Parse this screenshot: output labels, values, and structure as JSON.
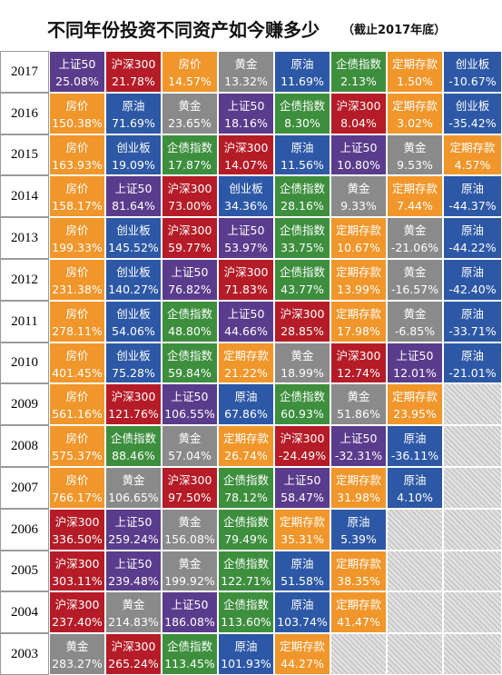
{
  "title": "不同年份投资不同资产如今赚多少",
  "subtitle": "（截止2017年底）",
  "colors": {
    "上证50": "#5a3c8c",
    "沪深300": "#b51c27",
    "房价": "#f0962a",
    "黄金": "#8a8a8a",
    "原油": "#2d58a6",
    "企债指数": "#3d8f3e",
    "定期存款": "#f0962a",
    "创业板": "#2d58a6"
  },
  "chart_data": {
    "type": "table",
    "years": [
      "2017",
      "2016",
      "2015",
      "2014",
      "2013",
      "2012",
      "2011",
      "2010",
      "2009",
      "2008",
      "2007",
      "2006",
      "2005",
      "2004",
      "2003"
    ],
    "rows": [
      {
        "year": "2017",
        "cells": [
          {
            "asset": "上证50",
            "value": "25.08%"
          },
          {
            "asset": "沪深300",
            "value": "21.78%"
          },
          {
            "asset": "房价",
            "value": "14.57%"
          },
          {
            "asset": "黄金",
            "value": "13.32%"
          },
          {
            "asset": "原油",
            "value": "11.69%"
          },
          {
            "asset": "企债指数",
            "value": "2.13%"
          },
          {
            "asset": "定期存款",
            "value": "1.50%"
          },
          {
            "asset": "创业板",
            "value": "-10.67%"
          }
        ]
      },
      {
        "year": "2016",
        "cells": [
          {
            "asset": "房价",
            "value": "150.38%"
          },
          {
            "asset": "原油",
            "value": "71.69%"
          },
          {
            "asset": "黄金",
            "value": "23.65%"
          },
          {
            "asset": "上证50",
            "value": "18.16%"
          },
          {
            "asset": "企债指数",
            "value": "8.30%"
          },
          {
            "asset": "沪深300",
            "value": "8.04%"
          },
          {
            "asset": "定期存款",
            "value": "3.02%"
          },
          {
            "asset": "创业板",
            "value": "-35.42%"
          }
        ]
      },
      {
        "year": "2015",
        "cells": [
          {
            "asset": "房价",
            "value": "163.93%"
          },
          {
            "asset": "创业板",
            "value": "19.09%"
          },
          {
            "asset": "企债指数",
            "value": "17.87%"
          },
          {
            "asset": "沪深300",
            "value": "14.07%"
          },
          {
            "asset": "原油",
            "value": "11.56%"
          },
          {
            "asset": "上证50",
            "value": "10.80%"
          },
          {
            "asset": "黄金",
            "value": "9.53%"
          },
          {
            "asset": "定期存款",
            "value": "4.57%"
          }
        ]
      },
      {
        "year": "2014",
        "cells": [
          {
            "asset": "房价",
            "value": "158.17%"
          },
          {
            "asset": "上证50",
            "value": "81.64%"
          },
          {
            "asset": "沪深300",
            "value": "73.00%"
          },
          {
            "asset": "创业板",
            "value": "34.36%"
          },
          {
            "asset": "企债指数",
            "value": "28.16%"
          },
          {
            "asset": "黄金",
            "value": "9.33%"
          },
          {
            "asset": "定期存款",
            "value": "7.44%"
          },
          {
            "asset": "原油",
            "value": "-44.37%"
          }
        ]
      },
      {
        "year": "2013",
        "cells": [
          {
            "asset": "房价",
            "value": "199.33%"
          },
          {
            "asset": "创业板",
            "value": "145.52%"
          },
          {
            "asset": "沪深300",
            "value": "59.77%"
          },
          {
            "asset": "上证50",
            "value": "53.97%"
          },
          {
            "asset": "企债指数",
            "value": "33.75%"
          },
          {
            "asset": "定期存款",
            "value": "10.67%"
          },
          {
            "asset": "黄金",
            "value": "-21.06%"
          },
          {
            "asset": "原油",
            "value": "-44.22%"
          }
        ]
      },
      {
        "year": "2012",
        "cells": [
          {
            "asset": "房价",
            "value": "231.38%"
          },
          {
            "asset": "创业板",
            "value": "140.27%"
          },
          {
            "asset": "上证50",
            "value": "76.82%"
          },
          {
            "asset": "沪深300",
            "value": "71.83%"
          },
          {
            "asset": "企债指数",
            "value": "43.77%"
          },
          {
            "asset": "定期存款",
            "value": "13.99%"
          },
          {
            "asset": "黄金",
            "value": "-16.57%"
          },
          {
            "asset": "原油",
            "value": "-42.40%"
          }
        ]
      },
      {
        "year": "2011",
        "cells": [
          {
            "asset": "房价",
            "value": "278.11%"
          },
          {
            "asset": "创业板",
            "value": "54.06%"
          },
          {
            "asset": "企债指数",
            "value": "48.80%"
          },
          {
            "asset": "上证50",
            "value": "44.66%"
          },
          {
            "asset": "沪深300",
            "value": "28.85%"
          },
          {
            "asset": "定期存款",
            "value": "17.98%"
          },
          {
            "asset": "黄金",
            "value": "-6.85%"
          },
          {
            "asset": "原油",
            "value": "-33.71%"
          }
        ]
      },
      {
        "year": "2010",
        "cells": [
          {
            "asset": "房价",
            "value": "401.45%"
          },
          {
            "asset": "创业板",
            "value": "75.28%"
          },
          {
            "asset": "企债指数",
            "value": "59.84%"
          },
          {
            "asset": "定期存款",
            "value": "21.22%"
          },
          {
            "asset": "黄金",
            "value": "18.99%"
          },
          {
            "asset": "沪深300",
            "value": "12.74%"
          },
          {
            "asset": "上证50",
            "value": "12.01%"
          },
          {
            "asset": "原油",
            "value": "-21.01%"
          }
        ]
      },
      {
        "year": "2009",
        "cells": [
          {
            "asset": "房价",
            "value": "561.16%"
          },
          {
            "asset": "沪深300",
            "value": "121.76%"
          },
          {
            "asset": "上证50",
            "value": "106.55%"
          },
          {
            "asset": "原油",
            "value": "67.86%"
          },
          {
            "asset": "企债指数",
            "value": "60.93%"
          },
          {
            "asset": "黄金",
            "value": "51.86%"
          },
          {
            "asset": "定期存款",
            "value": "23.95%"
          }
        ]
      },
      {
        "year": "2008",
        "cells": [
          {
            "asset": "房价",
            "value": "575.37%"
          },
          {
            "asset": "企债指数",
            "value": "88.46%"
          },
          {
            "asset": "黄金",
            "value": "57.04%"
          },
          {
            "asset": "定期存款",
            "value": "26.74%"
          },
          {
            "asset": "沪深300",
            "value": "-24.49%"
          },
          {
            "asset": "上证50",
            "value": "-32.31%"
          },
          {
            "asset": "原油",
            "value": "-36.11%"
          }
        ]
      },
      {
        "year": "2007",
        "cells": [
          {
            "asset": "房价",
            "value": "766.17%"
          },
          {
            "asset": "黄金",
            "value": "106.65%"
          },
          {
            "asset": "沪深300",
            "value": "97.50%"
          },
          {
            "asset": "企债指数",
            "value": "78.12%"
          },
          {
            "asset": "上证50",
            "value": "58.47%"
          },
          {
            "asset": "定期存款",
            "value": "31.98%"
          },
          {
            "asset": "原油",
            "value": "4.10%"
          }
        ]
      },
      {
        "year": "2006",
        "cells": [
          {
            "asset": "沪深300",
            "value": "336.50%"
          },
          {
            "asset": "上证50",
            "value": "259.24%"
          },
          {
            "asset": "黄金",
            "value": "156.08%"
          },
          {
            "asset": "企债指数",
            "value": "79.49%"
          },
          {
            "asset": "定期存款",
            "value": "35.31%"
          },
          {
            "asset": "原油",
            "value": "5.39%"
          }
        ]
      },
      {
        "year": "2005",
        "cells": [
          {
            "asset": "沪深300",
            "value": "303.11%"
          },
          {
            "asset": "上证50",
            "value": "239.48%"
          },
          {
            "asset": "黄金",
            "value": "199.92%"
          },
          {
            "asset": "企债指数",
            "value": "122.71%"
          },
          {
            "asset": "原油",
            "value": "51.58%"
          },
          {
            "asset": "定期存款",
            "value": "38.35%"
          }
        ]
      },
      {
        "year": "2004",
        "cells": [
          {
            "asset": "沪深300",
            "value": "237.40%"
          },
          {
            "asset": "黄金",
            "value": "214.83%"
          },
          {
            "asset": "上证50",
            "value": "186.08%"
          },
          {
            "asset": "企债指数",
            "value": "113.60%"
          },
          {
            "asset": "原油",
            "value": "103.74%"
          },
          {
            "asset": "定期存款",
            "value": "41.47%"
          }
        ]
      },
      {
        "year": "2003",
        "cells": [
          {
            "asset": "黄金",
            "value": "283.27%"
          },
          {
            "asset": "沪深300",
            "value": "265.24%"
          },
          {
            "asset": "企债指数",
            "value": "113.45%"
          },
          {
            "asset": "原油",
            "value": "101.93%"
          },
          {
            "asset": "定期存款",
            "value": "44.27%"
          }
        ]
      }
    ]
  }
}
